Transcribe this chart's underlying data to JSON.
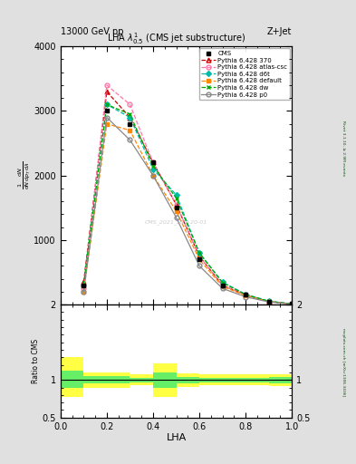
{
  "title": "LHA $\\lambda^{1}_{0.5}$ (CMS jet substructure)",
  "top_left": "13000 GeV pp",
  "top_right": "Z+Jet",
  "watermark": "CMS_2021_SMP-20-01",
  "rivet_label": "Rivet 3.1.10, ≥ 2.9M events",
  "mcplots_label": "mcplots.cern.ch [arXiv:1306.3436]",
  "xlabel": "LHA",
  "xlim": [
    0,
    1
  ],
  "ylim_main": [
    0,
    4000
  ],
  "ylim_ratio": [
    0.5,
    2.0
  ],
  "x_pts": [
    0.1,
    0.2,
    0.3,
    0.4,
    0.5,
    0.6,
    0.7,
    0.8,
    0.9,
    1.0
  ],
  "cms_y": [
    300,
    3000,
    2800,
    2200,
    1500,
    700,
    300,
    150,
    50,
    10
  ],
  "p370_y": [
    350,
    3300,
    2900,
    2200,
    1550,
    750,
    300,
    150,
    50,
    10
  ],
  "atlas_csc_y": [
    250,
    3400,
    3100,
    2200,
    1550,
    750,
    300,
    150,
    50,
    10
  ],
  "d6t_y": [
    300,
    3100,
    2900,
    2100,
    1700,
    800,
    350,
    160,
    55,
    10
  ],
  "default_y": [
    200,
    2800,
    2700,
    2000,
    1450,
    700,
    280,
    140,
    48,
    8
  ],
  "dw_y": [
    300,
    3100,
    2950,
    2150,
    1650,
    800,
    340,
    155,
    52,
    10
  ],
  "p0_y": [
    200,
    2900,
    2550,
    2000,
    1350,
    600,
    250,
    120,
    42,
    8
  ],
  "colors": {
    "cms": "#000000",
    "p370": "#cc0000",
    "atlas_csc": "#ff77aa",
    "d6t": "#00bbaa",
    "default": "#ff8800",
    "dw": "#00aa00",
    "p0": "#888888"
  },
  "ratio_x_lo": [
    0.0,
    0.1,
    0.2,
    0.3,
    0.4,
    0.5,
    0.6,
    0.7,
    0.8,
    0.9
  ],
  "ratio_x_hi": [
    0.1,
    0.2,
    0.3,
    0.4,
    0.5,
    0.6,
    0.7,
    0.8,
    0.9,
    1.0
  ],
  "ratio_ylo": [
    0.78,
    0.9,
    0.9,
    0.93,
    0.78,
    0.91,
    0.93,
    0.93,
    0.93,
    0.92
  ],
  "ratio_yhi": [
    1.3,
    1.1,
    1.1,
    1.07,
    1.22,
    1.09,
    1.07,
    1.07,
    1.07,
    1.08
  ],
  "ratio_glo": [
    0.9,
    0.95,
    0.95,
    0.97,
    0.9,
    0.96,
    0.97,
    0.97,
    0.97,
    0.96
  ],
  "ratio_ghi": [
    1.12,
    1.05,
    1.05,
    1.03,
    1.1,
    1.04,
    1.03,
    1.03,
    1.03,
    1.04
  ]
}
